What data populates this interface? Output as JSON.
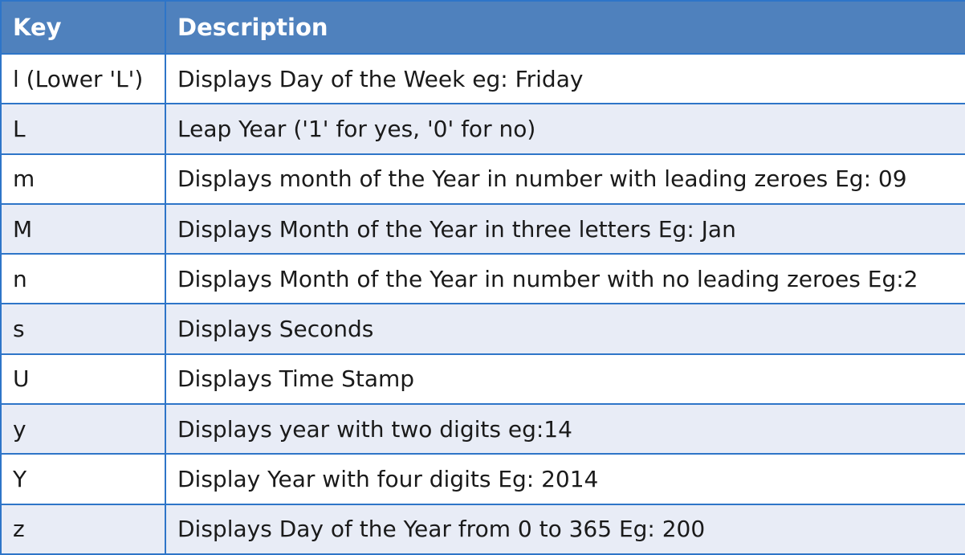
{
  "table": {
    "headers": {
      "key": "Key",
      "description": "Description"
    },
    "rows": [
      {
        "key": "l (Lower 'L')",
        "description": "Displays Day of the Week eg: Friday"
      },
      {
        "key": "L",
        "description": "Leap Year ('1' for yes, '0' for no)"
      },
      {
        "key": "m",
        "description": "Displays month of the Year in number with leading zeroes Eg: 09"
      },
      {
        "key": "M",
        "description": "Displays Month of the Year in three letters Eg: Jan"
      },
      {
        "key": "n",
        "description": "Displays Month of the Year in number with no leading zeroes Eg:2"
      },
      {
        "key": "s",
        "description": "Displays Seconds"
      },
      {
        "key": "U",
        "description": "Displays Time Stamp"
      },
      {
        "key": "y",
        "description": "Displays year with two digits eg:14"
      },
      {
        "key": "Y",
        "description": "Display Year with four digits Eg: 2014"
      },
      {
        "key": "z",
        "description": "Displays Day of the Year from 0 to 365 Eg: 200"
      }
    ]
  },
  "colors": {
    "header_bg": "#4f81bd",
    "header_text": "#ffffff",
    "border": "#2e75c8",
    "row_alt_bg": "#e8ecf6",
    "row_bg": "#ffffff"
  }
}
